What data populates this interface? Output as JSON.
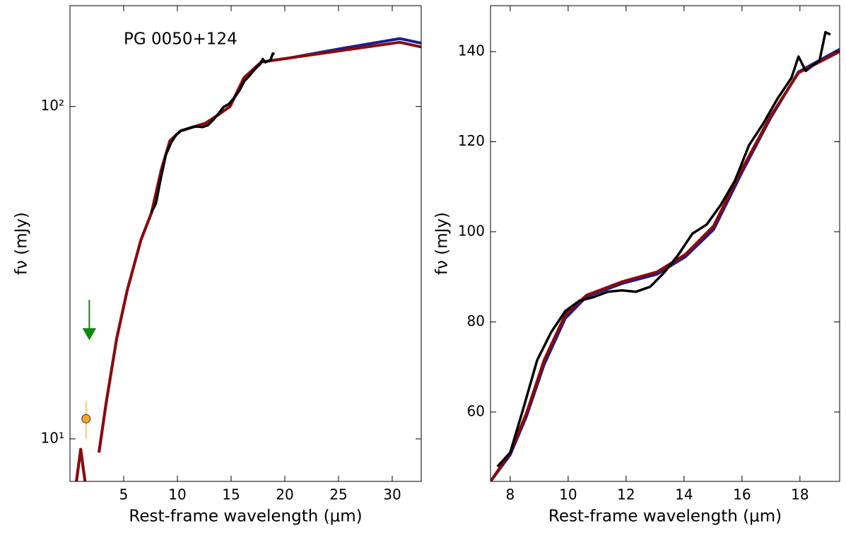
{
  "chart_data": [
    {
      "type": "line",
      "annotation": "PG 0050+124",
      "xlabel": "Rest-frame wavelength (μm)",
      "ylabel": "fν (mJy)",
      "xlim": [
        0,
        32.7
      ],
      "xticks": [
        5,
        10,
        15,
        20,
        25,
        30
      ],
      "ylim": [
        7.45,
        201
      ],
      "yscale": "log",
      "yticks": [
        {
          "value": 10,
          "label": "10¹"
        },
        {
          "value": 100,
          "label": "10²"
        }
      ],
      "series": [
        {
          "style": "line",
          "color": "#1c1c8c",
          "x": [
            0.6,
            1.0,
            1.4,
            2.2,
            2.7,
            3.36,
            4.34,
            5.33,
            6.6,
            7.6,
            8.5,
            9.3,
            10.3,
            12.6,
            13.6,
            14.9,
            16.2,
            17.8,
            20.5,
            25.1,
            30.7,
            32.7
          ],
          "values": [
            7.45,
            9.3,
            7.45,
            null,
            9.1,
            12.8,
            20,
            28,
            39.6,
            48,
            64.5,
            78.8,
            84.4,
            89,
            93.4,
            100,
            122,
            136,
            140,
            149,
            160,
            155
          ]
        },
        {
          "style": "line",
          "color": "#8b0a0a",
          "x": [
            0.6,
            1.0,
            1.4,
            2.2,
            2.7,
            3.36,
            4.34,
            5.33,
            6.6,
            7.6,
            8.5,
            9.3,
            10.3,
            12.6,
            13.6,
            14.9,
            16.2,
            17.8,
            20.5,
            25.1,
            30.7,
            32.7
          ],
          "values": [
            7.45,
            9.3,
            7.45,
            null,
            9.1,
            12.8,
            20,
            28,
            39.6,
            48,
            64.5,
            78.8,
            84.4,
            89,
            93.4,
            100,
            122,
            136,
            140,
            147,
            156,
            151
          ]
        },
        {
          "style": "line",
          "color": "#000000",
          "x": [
            7.56,
            8.0,
            8.44,
            8.93,
            9.41,
            9.9,
            10.39,
            10.88,
            11.37,
            11.85,
            12.34,
            12.83,
            13.32,
            13.8,
            14.29,
            14.78,
            15.27,
            15.76,
            16.24,
            16.73,
            17.22,
            17.71,
            17.95,
            18.2,
            18.68,
            18.88,
            19.05
          ],
          "values": [
            47.9,
            51,
            60.5,
            71.5,
            77.7,
            82.4,
            84.7,
            85.5,
            86.7,
            87,
            86.7,
            87.8,
            91,
            94.9,
            99.6,
            101.6,
            106,
            111.4,
            119.2,
            124,
            129.5,
            134.2,
            138.9,
            135.7,
            138.1,
            144.3,
            143.8
          ]
        },
        {
          "style": "point",
          "color": "#f5a623",
          "x": [
            1.5
          ],
          "values": [
            11.5
          ],
          "errors": [
            1.5
          ]
        },
        {
          "style": "upper-limit",
          "color": "#0a8a0a",
          "x": [
            1.8
          ],
          "values": [
            20
          ]
        }
      ]
    },
    {
      "type": "line",
      "xlabel": "Rest-frame wavelength (μm)",
      "ylabel": "fν (mJy)",
      "xlim": [
        7.32,
        19.37
      ],
      "xticks": [
        8,
        10,
        12,
        14,
        16,
        18
      ],
      "ylim": [
        44.6,
        150.2
      ],
      "yscale": "linear",
      "yticks": [
        60,
        80,
        100,
        120,
        140
      ],
      "series": [
        {
          "style": "line",
          "color": "#1c1c8c",
          "x": [
            7.32,
            8.0,
            8.56,
            9.17,
            9.9,
            10.63,
            11.85,
            13.07,
            14.05,
            15.02,
            16.0,
            16.98,
            17.95,
            19.37
          ],
          "values": [
            44.6,
            50.5,
            59,
            70.5,
            80.8,
            85.6,
            88.5,
            90.6,
            94.5,
            100.5,
            113.2,
            125.2,
            135.5,
            140.5
          ]
        },
        {
          "style": "line",
          "color": "#8b0a0a",
          "x": [
            7.32,
            8.0,
            8.56,
            9.17,
            9.9,
            10.63,
            11.85,
            13.07,
            14.05,
            15.02,
            16.0,
            16.98,
            17.95,
            19.37
          ],
          "values": [
            44.6,
            51,
            59.7,
            71.5,
            81.6,
            85.9,
            88.9,
            91.1,
            95,
            101.3,
            113.9,
            125.6,
            135.3,
            140
          ]
        },
        {
          "style": "line",
          "color": "#000000",
          "x": [
            7.56,
            8.0,
            8.44,
            8.93,
            9.41,
            9.9,
            10.39,
            10.88,
            11.37,
            11.85,
            12.34,
            12.83,
            13.32,
            13.8,
            14.29,
            14.78,
            15.27,
            15.76,
            16.24,
            16.73,
            17.22,
            17.71,
            17.95,
            18.2,
            18.68,
            18.88,
            19.05
          ],
          "values": [
            47.9,
            51,
            60.5,
            71.5,
            77.7,
            82.4,
            84.7,
            85.5,
            86.7,
            87,
            86.7,
            87.8,
            91,
            94.9,
            99.6,
            101.6,
            106,
            111.4,
            119.2,
            124,
            129.5,
            134.2,
            138.9,
            135.7,
            138.1,
            144.3,
            143.8
          ]
        }
      ]
    }
  ]
}
